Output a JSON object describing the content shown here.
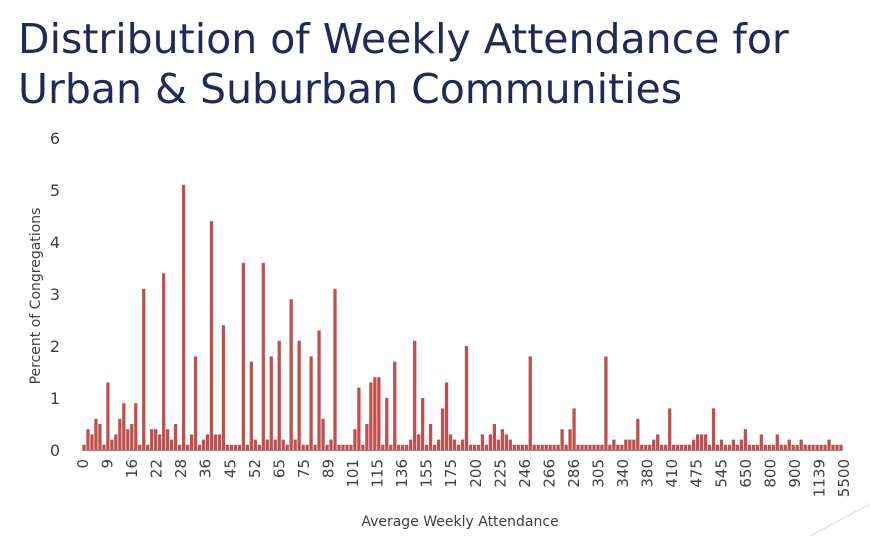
{
  "title_line1": "Distribution of Weekly Attendance for",
  "title_line2": "Urban & Suburban Communities",
  "chart_data": {
    "type": "bar",
    "title": "Distribution of Weekly Attendance for Urban & Suburban Communities",
    "xlabel": "Average Weekly Attendance",
    "ylabel": "Percent of Congregations",
    "ylim": [
      0,
      6
    ],
    "yticks": [
      0,
      1,
      2,
      3,
      4,
      5,
      6
    ],
    "xtick_labels": [
      "0",
      "9",
      "16",
      "22",
      "28",
      "36",
      "45",
      "52",
      "65",
      "75",
      "89",
      "101",
      "115",
      "136",
      "155",
      "175",
      "200",
      "225",
      "246",
      "266",
      "286",
      "305",
      "340",
      "380",
      "410",
      "475",
      "545",
      "650",
      "800",
      "900",
      "1139",
      "5500"
    ],
    "color": "#c0504d",
    "values": [
      0.1,
      0.4,
      0.3,
      0.6,
      0.5,
      0.1,
      1.3,
      0.2,
      0.3,
      0.6,
      0.9,
      0.4,
      0.5,
      0.9,
      0.1,
      3.1,
      0.1,
      0.4,
      0.4,
      0.3,
      3.4,
      0.4,
      0.2,
      0.5,
      0.1,
      5.1,
      0.1,
      0.3,
      1.8,
      0.1,
      0.2,
      0.3,
      4.4,
      0.3,
      0.3,
      2.4,
      0.1,
      0.1,
      0.1,
      0.1,
      3.6,
      0.1,
      1.7,
      0.2,
      0.1,
      3.6,
      0.2,
      1.8,
      0.2,
      2.1,
      0.2,
      0.1,
      2.9,
      0.2,
      2.1,
      0.1,
      0.1,
      1.8,
      0.1,
      2.3,
      0.6,
      0.1,
      0.2,
      3.1,
      0.1,
      0.1,
      0.1,
      0.1,
      0.4,
      1.2,
      0.1,
      0.5,
      1.3,
      1.4,
      1.4,
      0.1,
      1.0,
      0.1,
      1.7,
      0.1,
      0.1,
      0.1,
      0.2,
      2.1,
      0.3,
      1.0,
      0.1,
      0.5,
      0.1,
      0.2,
      0.8,
      1.3,
      0.3,
      0.2,
      0.1,
      0.2,
      2.0,
      0.1,
      0.1,
      0.1,
      0.3,
      0.1,
      0.3,
      0.5,
      0.2,
      0.4,
      0.3,
      0.2,
      0.1,
      0.1,
      0.1,
      0.1,
      1.8,
      0.1,
      0.1,
      0.1,
      0.1,
      0.1,
      0.1,
      0.1,
      0.4,
      0.1,
      0.4,
      0.8,
      0.1,
      0.1,
      0.1,
      0.1,
      0.1,
      0.1,
      0.1,
      1.8,
      0.1,
      0.2,
      0.1,
      0.1,
      0.2,
      0.2,
      0.2,
      0.6,
      0.1,
      0.1,
      0.1,
      0.2,
      0.3,
      0.1,
      0.1,
      0.8,
      0.1,
      0.1,
      0.1,
      0.1,
      0.1,
      0.2,
      0.3,
      0.3,
      0.3,
      0.1,
      0.8,
      0.1,
      0.2,
      0.1,
      0.1,
      0.2,
      0.1,
      0.2,
      0.4,
      0.1,
      0.1,
      0.1,
      0.3,
      0.1,
      0.1,
      0.1,
      0.3,
      0.1,
      0.1,
      0.2,
      0.1,
      0.1,
      0.2,
      0.1,
      0.1,
      0.1,
      0.1,
      0.1,
      0.1,
      0.2,
      0.1,
      0.1,
      0.1
    ]
  }
}
